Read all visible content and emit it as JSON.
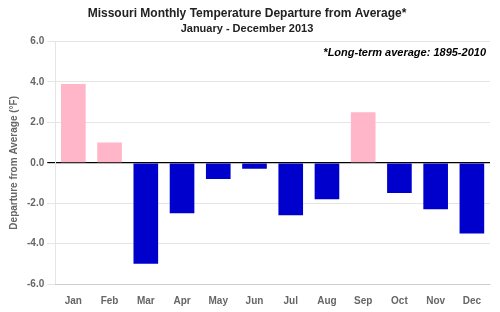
{
  "chart_data": {
    "type": "bar",
    "title": "Missouri Monthly Temperature Departure from Average*",
    "subtitle": "January - December 2013",
    "y_label": "Departure from Average (°F)",
    "annotation": "*Long-term average: 1895-2010",
    "categories": [
      "Jan",
      "Feb",
      "Mar",
      "Apr",
      "May",
      "Jun",
      "Jul",
      "Aug",
      "Sep",
      "Oct",
      "Nov",
      "Dec"
    ],
    "values": [
      3.9,
      1.0,
      -5.0,
      -2.5,
      -0.8,
      -0.3,
      -2.6,
      -1.8,
      2.5,
      -1.5,
      -2.3,
      -3.5
    ],
    "colors": [
      "#ffb6c8",
      "#ffb6c8",
      "#0000cc",
      "#0000cc",
      "#0000cc",
      "#0000cc",
      "#0000cc",
      "#0000cc",
      "#ffb6c8",
      "#0000cc",
      "#0000cc",
      "#0000cc"
    ],
    "ylim": [
      -6.0,
      6.0
    ],
    "yticks": [
      {
        "value": -6.0,
        "label": "-6.0"
      },
      {
        "value": -4.0,
        "label": "-4.0"
      },
      {
        "value": -2.0,
        "label": "-2.0"
      },
      {
        "value": 0.0,
        "label": "0.0"
      },
      {
        "value": 2.0,
        "label": "2.0"
      },
      {
        "value": 4.0,
        "label": "4.0"
      },
      {
        "value": 6.0,
        "label": "6.0"
      }
    ],
    "grid": true
  }
}
